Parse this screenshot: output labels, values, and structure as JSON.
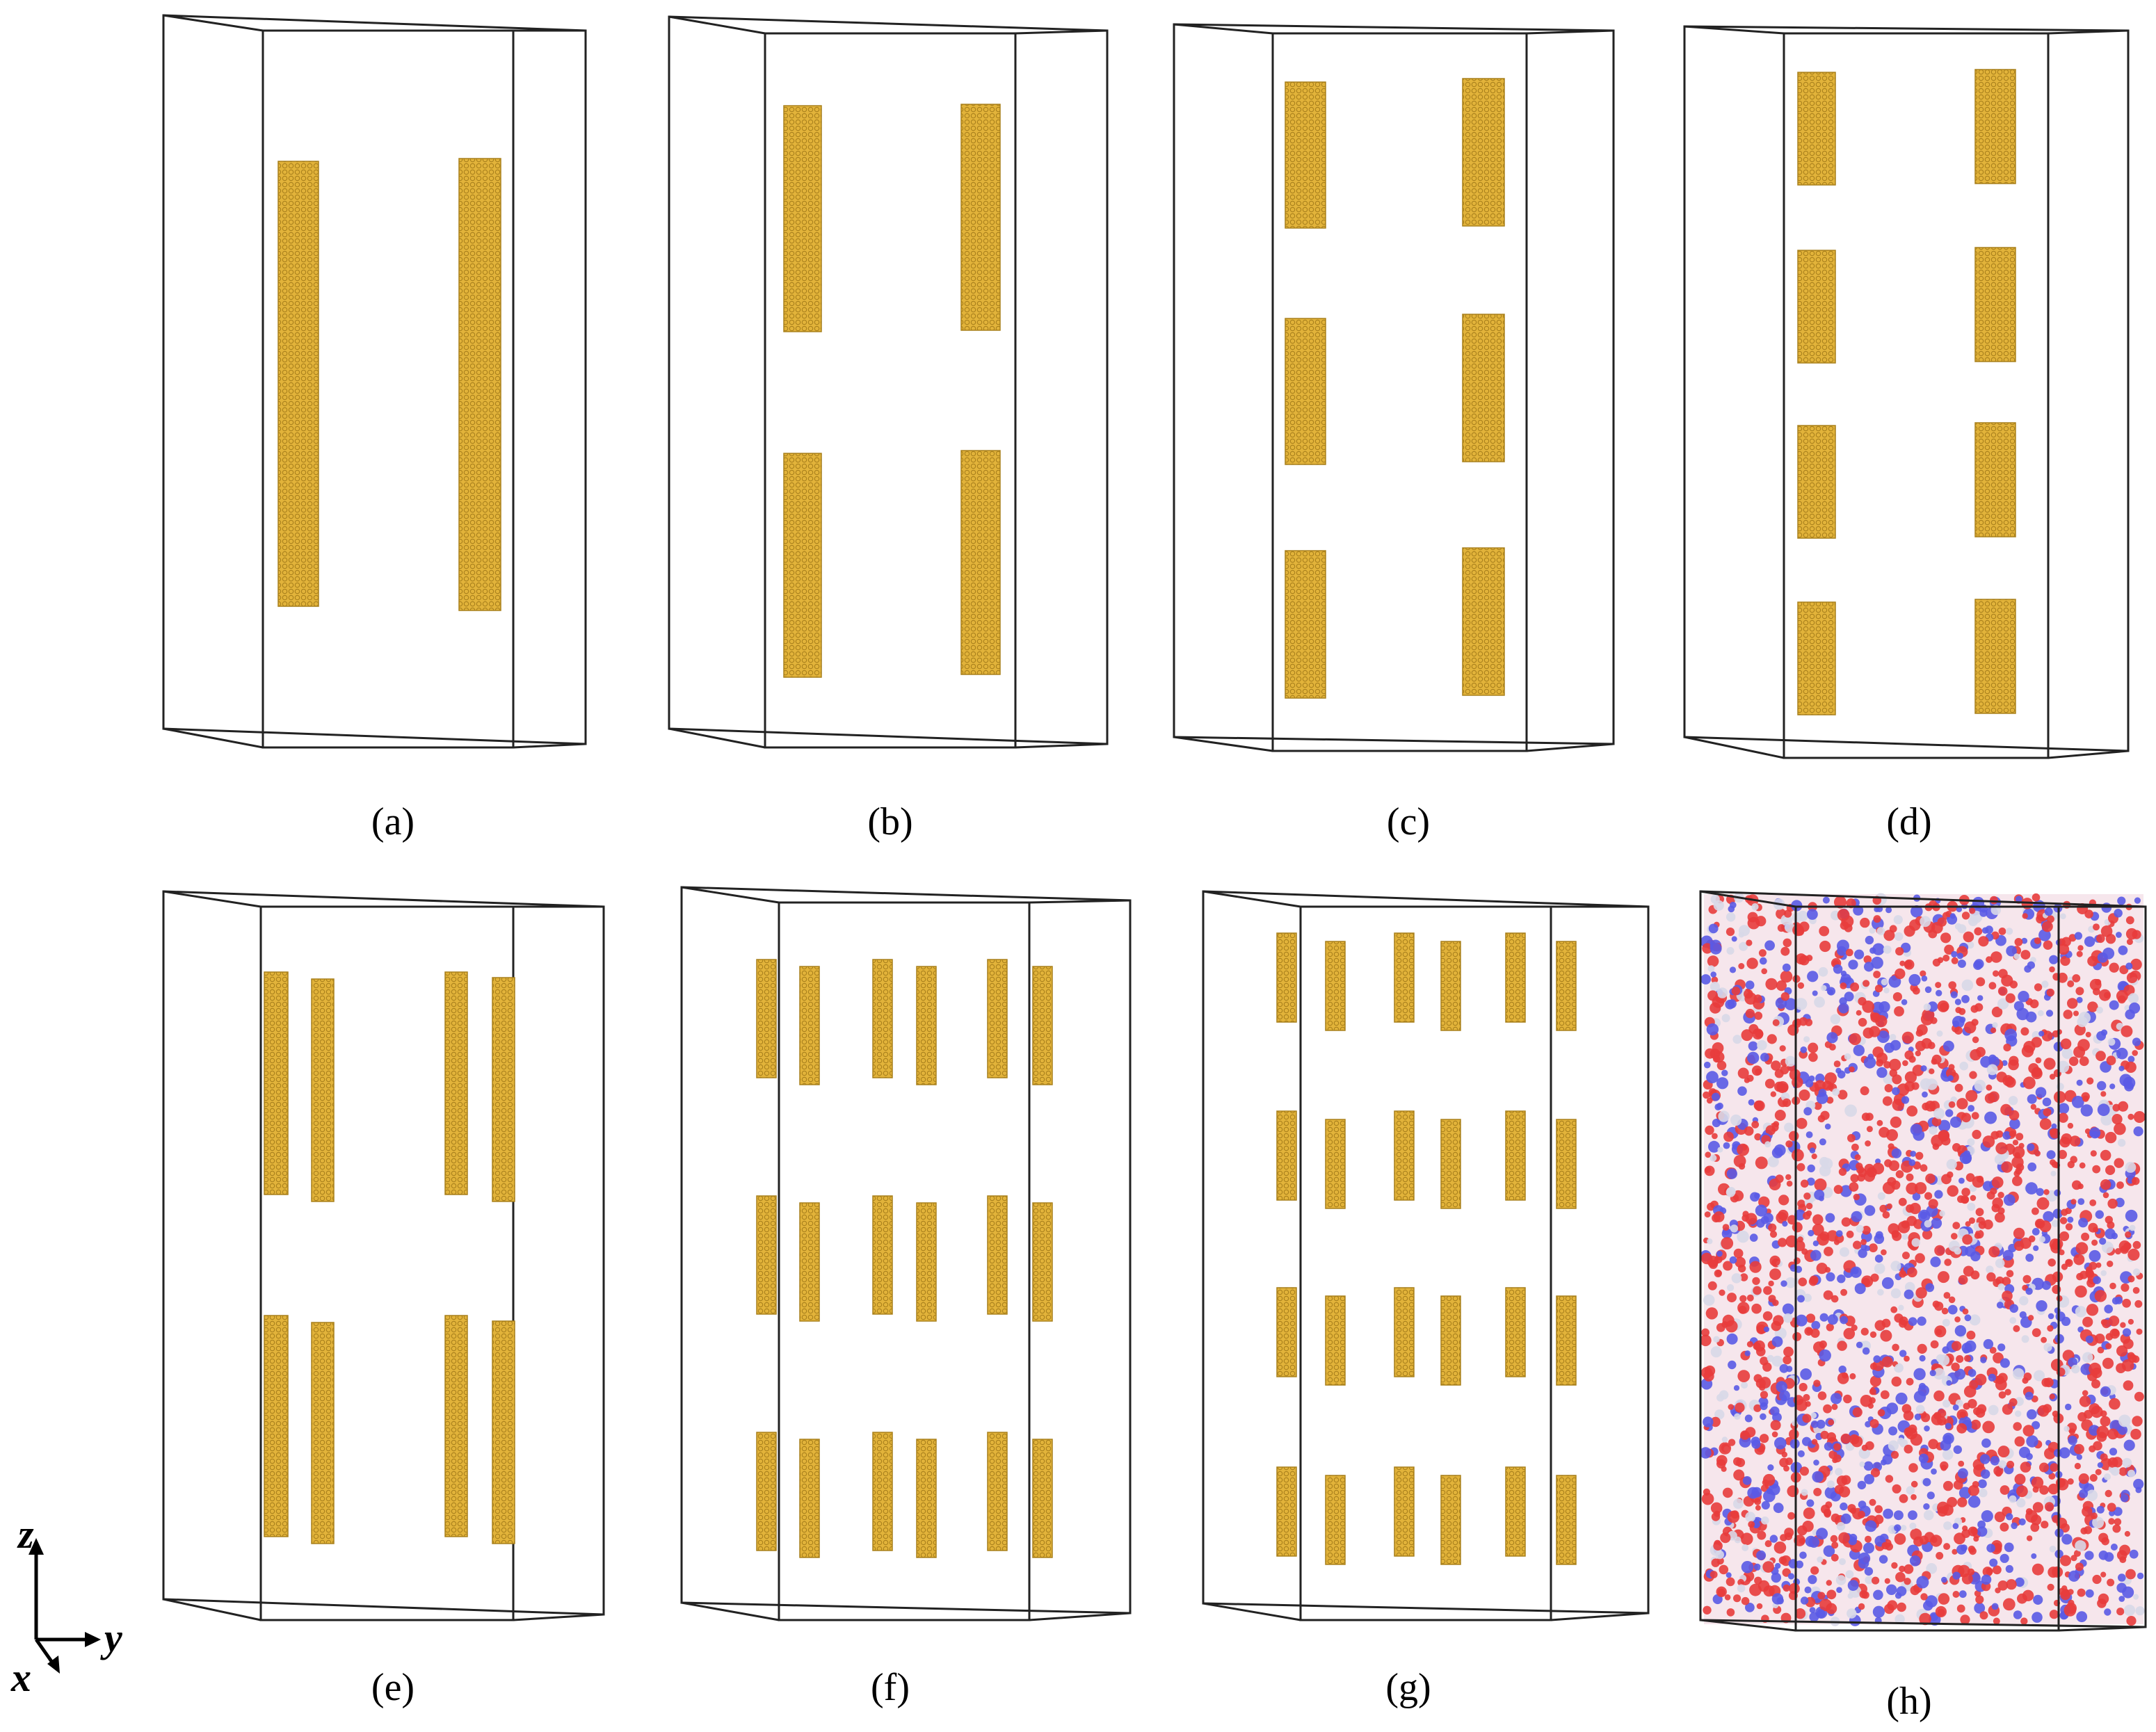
{
  "colors": {
    "background": "#ffffff",
    "frame": "#222222",
    "rod_fill": "#e2b33a",
    "rod_edge": "#a9801c",
    "water_red": "#e83c3c",
    "water_blue": "#5a5ae6",
    "water_light": "#d8d8e8",
    "axis": "#000000"
  },
  "panels": [
    {
      "id": "a",
      "label": "(a)",
      "layers": 1,
      "rods_per_layer": 2
    },
    {
      "id": "b",
      "label": "(b)",
      "layers": 2,
      "rods_per_layer": 2
    },
    {
      "id": "c",
      "label": "(c)",
      "layers": 3,
      "rods_per_layer": 2
    },
    {
      "id": "d",
      "label": "(d)",
      "layers": 4,
      "rods_per_layer": 2
    },
    {
      "id": "e",
      "label": "(e)",
      "layers": 2,
      "rods_per_layer": 4
    },
    {
      "id": "f",
      "label": "(f)",
      "layers": 3,
      "rods_per_layer": 6
    },
    {
      "id": "g",
      "label": "(g)",
      "layers": 4,
      "rods_per_layer": 6
    },
    {
      "id": "h",
      "label": "(h)",
      "fill": "water-molecules"
    }
  ],
  "axes": {
    "z_label": "z",
    "y_label": "y",
    "x_label": "x"
  }
}
